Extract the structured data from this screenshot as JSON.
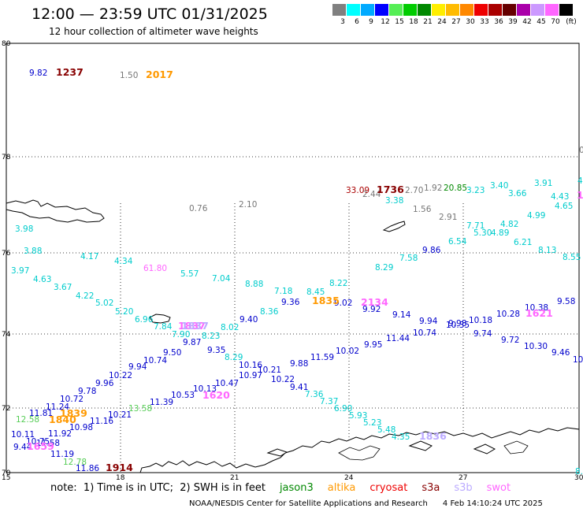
{
  "header": {
    "title": "12:00 — 23:59 UTC 01/31/2025",
    "subtitle": "12 hour collection of altimeter wave heights"
  },
  "legend": {
    "unit": "(ft)",
    "bins": [
      {
        "label": "3",
        "color": "#808080"
      },
      {
        "label": "6",
        "color": "#00ffff"
      },
      {
        "label": "9",
        "color": "#00aaff"
      },
      {
        "label": "12",
        "color": "#0000ff"
      },
      {
        "label": "15",
        "color": "#55ee55"
      },
      {
        "label": "18",
        "color": "#00cc00"
      },
      {
        "label": "21",
        "color": "#008800"
      },
      {
        "label": "24",
        "color": "#ffee00"
      },
      {
        "label": "27",
        "color": "#ffbb00"
      },
      {
        "label": "30",
        "color": "#ff8800"
      },
      {
        "label": "33",
        "color": "#ee0000"
      },
      {
        "label": "36",
        "color": "#aa0000"
      },
      {
        "label": "39",
        "color": "#660000"
      },
      {
        "label": "42",
        "color": "#aa00aa"
      },
      {
        "label": "45",
        "color": "#cc99ff"
      },
      {
        "label": "70",
        "color": "#ff66ff"
      },
      {
        "label": "",
        "color": "#000000"
      }
    ]
  },
  "axes": {
    "lat_labels": [
      "80",
      "78",
      "76",
      "74",
      "72",
      "70"
    ],
    "lon_labels": [
      "15",
      "18",
      "21",
      "24",
      "27",
      "30"
    ],
    "lat_range": [
      70,
      80
    ],
    "lon_range": [
      15,
      30
    ]
  },
  "observations": [
    {
      "t": "9.82",
      "c": "#0000cc"
    },
    {
      "t": "1.50",
      "c": "#777777"
    },
    {
      "t": "3.98",
      "c": "#00cccc"
    },
    {
      "t": "0.76",
      "c": "#777777"
    },
    {
      "t": "2.10",
      "c": "#777777"
    },
    {
      "t": "3.88",
      "c": "#00cccc"
    },
    {
      "t": "4.17",
      "c": "#00cccc"
    },
    {
      "t": "4.34",
      "c": "#00cccc"
    },
    {
      "t": "3.97",
      "c": "#00cccc"
    },
    {
      "t": "4.63",
      "c": "#00cccc"
    },
    {
      "t": "3.67",
      "c": "#00cccc"
    },
    {
      "t": "4.22",
      "c": "#00cccc"
    },
    {
      "t": "5.02",
      "c": "#00cccc"
    },
    {
      "t": "5.20",
      "c": "#00cccc"
    },
    {
      "t": "6.96",
      "c": "#00cccc"
    },
    {
      "t": "7.84",
      "c": "#00cccc"
    },
    {
      "t": "7.90",
      "c": "#00cccc"
    },
    {
      "t": "8.23",
      "c": "#00cccc"
    },
    {
      "t": "8.02",
      "c": "#00cccc"
    },
    {
      "t": "5.57",
      "c": "#00cccc"
    },
    {
      "t": "7.04",
      "c": "#00cccc"
    },
    {
      "t": "8.88",
      "c": "#00cccc"
    },
    {
      "t": "7.18",
      "c": "#00cccc"
    },
    {
      "t": "8.36",
      "c": "#00cccc"
    },
    {
      "t": "8.45",
      "c": "#00cccc"
    },
    {
      "t": "8.22",
      "c": "#00cccc"
    },
    {
      "t": "8.29",
      "c": "#00cccc"
    },
    {
      "t": "7.58",
      "c": "#00cccc"
    },
    {
      "t": "3.38",
      "c": "#00cccc"
    },
    {
      "t": "3.23",
      "c": "#00cccc"
    },
    {
      "t": "3.40",
      "c": "#00cccc"
    },
    {
      "t": "3.66",
      "c": "#00cccc"
    },
    {
      "t": "3.91",
      "c": "#00cccc"
    },
    {
      "t": "4.43",
      "c": "#00cccc"
    },
    {
      "t": "4.65",
      "c": "#00cccc"
    },
    {
      "t": "4.99",
      "c": "#00cccc"
    },
    {
      "t": "4.82",
      "c": "#00cccc"
    },
    {
      "t": "4.89",
      "c": "#00cccc"
    },
    {
      "t": "5.30",
      "c": "#00cccc"
    },
    {
      "t": "7.71",
      "c": "#00cccc"
    },
    {
      "t": "6.54",
      "c": "#00cccc"
    },
    {
      "t": "6.21",
      "c": "#00cccc"
    },
    {
      "t": "8.13",
      "c": "#00cccc"
    },
    {
      "t": "8.55",
      "c": "#00cccc"
    },
    {
      "t": "1.56",
      "c": "#777777"
    },
    {
      "t": "2.91",
      "c": "#777777"
    },
    {
      "t": "2.70",
      "c": "#777777"
    },
    {
      "t": "1.92",
      "c": "#777777"
    },
    {
      "t": "2.44",
      "c": "#777777"
    },
    {
      "t": "33.09",
      "c": "#aa0000"
    },
    {
      "t": "20.85",
      "c": "#008800"
    },
    {
      "t": "9.86",
      "c": "#0000cc"
    },
    {
      "t": "9.58",
      "c": "#0000cc"
    },
    {
      "t": "10.38",
      "c": "#0000cc"
    },
    {
      "t": "10.28",
      "c": "#0000cc"
    },
    {
      "t": "10.18",
      "c": "#0000cc"
    },
    {
      "t": "9.94",
      "c": "#0000cc"
    },
    {
      "t": "10.35",
      "c": "#0000cc"
    },
    {
      "t": "9.98",
      "c": "#0000cc"
    },
    {
      "t": "9.14",
      "c": "#0000cc"
    },
    {
      "t": "9.92",
      "c": "#0000cc"
    },
    {
      "t": "9.02",
      "c": "#0000cc"
    },
    {
      "t": "9.36",
      "c": "#0000cc"
    },
    {
      "t": "9.40",
      "c": "#0000cc"
    },
    {
      "t": "10.74",
      "c": "#0000cc"
    },
    {
      "t": "11.44",
      "c": "#0000cc"
    },
    {
      "t": "9.95",
      "c": "#0000cc"
    },
    {
      "t": "10.02",
      "c": "#0000cc"
    },
    {
      "t": "9.74",
      "c": "#0000cc"
    },
    {
      "t": "9.72",
      "c": "#0000cc"
    },
    {
      "t": "10.30",
      "c": "#0000cc"
    },
    {
      "t": "9.46",
      "c": "#0000cc"
    },
    {
      "t": "11.59",
      "c": "#0000cc"
    },
    {
      "t": "9.88",
      "c": "#0000cc"
    },
    {
      "t": "10.21",
      "c": "#0000cc"
    },
    {
      "t": "10.16",
      "c": "#0000cc"
    },
    {
      "t": "10.22",
      "c": "#0000cc"
    },
    {
      "t": "10.97",
      "c": "#0000cc"
    },
    {
      "t": "9.41",
      "c": "#0000cc"
    },
    {
      "t": "10.47",
      "c": "#0000cc"
    },
    {
      "t": "10.13",
      "c": "#0000cc"
    },
    {
      "t": "10.53",
      "c": "#0000cc"
    },
    {
      "t": "11.39",
      "c": "#0000cc"
    },
    {
      "t": "9.35",
      "c": "#0000cc"
    },
    {
      "t": "9.87",
      "c": "#0000cc"
    },
    {
      "t": "9.50",
      "c": "#0000cc"
    },
    {
      "t": "10.74",
      "c": "#0000cc"
    },
    {
      "t": "9.94",
      "c": "#0000cc"
    },
    {
      "t": "10.22",
      "c": "#0000cc"
    },
    {
      "t": "9.96",
      "c": "#0000cc"
    },
    {
      "t": "9.78",
      "c": "#0000cc"
    },
    {
      "t": "10.72",
      "c": "#0000cc"
    },
    {
      "t": "11.24",
      "c": "#0000cc"
    },
    {
      "t": "11.81",
      "c": "#0000cc"
    },
    {
      "t": "11.16",
      "c": "#0000cc"
    },
    {
      "t": "10.98",
      "c": "#0000cc"
    },
    {
      "t": "11.92",
      "c": "#0000cc"
    },
    {
      "t": "10.21",
      "c": "#0000cc"
    },
    {
      "t": "10.11",
      "c": "#0000cc"
    },
    {
      "t": "10.75",
      "c": "#0000cc"
    },
    {
      "t": "9.44",
      "c": "#0000cc"
    },
    {
      "t": "11.19",
      "c": "#0000cc"
    },
    {
      "t": "11.86",
      "c": "#0000cc"
    },
    {
      "t": "11.58",
      "c": "#0000cc"
    },
    {
      "t": "12.58",
      "c": "#55cc55"
    },
    {
      "t": "12.78",
      "c": "#55cc55"
    },
    {
      "t": "13.58",
      "c": "#55cc55"
    },
    {
      "t": "8.29",
      "c": "#00cccc"
    },
    {
      "t": "7.36",
      "c": "#00cccc"
    },
    {
      "t": "7.37",
      "c": "#00cccc"
    },
    {
      "t": "6.90",
      "c": "#00cccc"
    },
    {
      "t": "5.93",
      "c": "#00cccc"
    },
    {
      "t": "5.23",
      "c": "#00cccc"
    },
    {
      "t": "5.48",
      "c": "#00cccc"
    },
    {
      "t": "4.35",
      "c": "#00cccc"
    },
    {
      "t": "61.80",
      "c": "#ff66ff"
    },
    {
      "t": "10",
      "c": "#0000cc"
    },
    {
      "t": "0.",
      "c": "#777777"
    },
    {
      "t": "4.",
      "c": "#00cccc"
    },
    {
      "t": "8.",
      "c": "#00cccc"
    }
  ],
  "pass_labels": [
    {
      "t": "1237",
      "c": "#880000"
    },
    {
      "t": "2017",
      "c": "#ff9900"
    },
    {
      "t": "1736",
      "c": "#880000"
    },
    {
      "t": "1837",
      "c": "#ff66ff"
    },
    {
      "t": "1837",
      "c": "#bbaaff"
    },
    {
      "t": "1835",
      "c": "#ff9900"
    },
    {
      "t": "2134",
      "c": "#ff66ff"
    },
    {
      "t": "1621",
      "c": "#ff66ff"
    },
    {
      "t": "1620",
      "c": "#ff66ff"
    },
    {
      "t": "1839",
      "c": "#ff9900"
    },
    {
      "t": "1840",
      "c": "#ff9900"
    },
    {
      "t": "1659",
      "c": "#ff66ff"
    },
    {
      "t": "1914",
      "c": "#880000"
    },
    {
      "t": "1836",
      "c": "#bbaaff"
    },
    {
      "t": "1",
      "c": "#ff66ff"
    }
  ],
  "footer": {
    "note": "note:  1) Time is in UTC;  2) SWH is in feet",
    "satellites": [
      {
        "name": "jason3",
        "color": "#008800"
      },
      {
        "name": "altika",
        "color": "#ff9900"
      },
      {
        "name": "cryosat",
        "color": "#ee0000"
      },
      {
        "name": "s3a",
        "color": "#880000"
      },
      {
        "name": "s3b",
        "color": "#bbaaff"
      },
      {
        "name": "swot",
        "color": "#ff66ff"
      }
    ],
    "credit": "NOAA/NESDIS Center for Satellite Applications and Research      4 Feb 14:10:24 UTC 2025"
  }
}
